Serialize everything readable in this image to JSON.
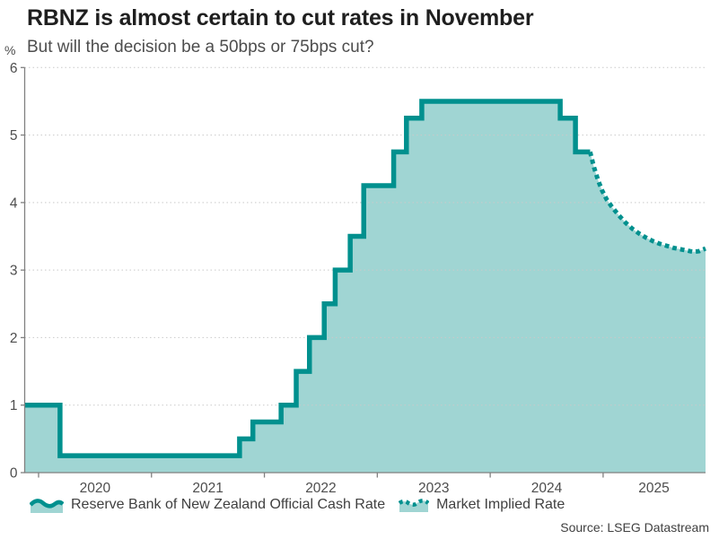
{
  "header": {
    "title": "RBNZ is almost certain to cut rates in November",
    "subtitle": "But will the decision be a 50bps or 75bps cut?",
    "unit": "%"
  },
  "legend": {
    "ocr_label": "Reserve Bank of New Zealand Official Cash Rate",
    "implied_label": "Market Implied Rate"
  },
  "source": "Source: LSEG Datastream",
  "chart_data": {
    "type": "area",
    "title": "RBNZ is almost certain to cut rates in November",
    "subtitle": "But will the decision be a 50bps or 75bps cut?",
    "xlabel": "",
    "ylabel": "%",
    "ylim": [
      0,
      6
    ],
    "xlim": [
      2019.877,
      2025.907
    ],
    "yticks": [
      0,
      1,
      2,
      3,
      4,
      5,
      6
    ],
    "xticks": [
      2020,
      2021,
      2022,
      2023,
      2024,
      2025
    ],
    "xtick_labels": [
      "2020",
      "2021",
      "2022",
      "2023",
      "2024",
      "2025"
    ],
    "xtick_label_positions": [
      2020.5,
      2021.5,
      2022.5,
      2023.5,
      2024.5,
      2025.45
    ],
    "grid": "horizontal-dotted",
    "legend_position": "bottom",
    "series": [
      {
        "name": "Reserve Bank of New Zealand Official Cash Rate",
        "style": "solid-step",
        "end_x": 2024.885,
        "points": [
          [
            2019.877,
            1.0
          ],
          [
            2020.19,
            0.25
          ],
          [
            2021.78,
            0.5
          ],
          [
            2021.898,
            0.75
          ],
          [
            2022.148,
            1.0
          ],
          [
            2022.282,
            1.5
          ],
          [
            2022.399,
            2.0
          ],
          [
            2022.53,
            2.5
          ],
          [
            2022.627,
            3.0
          ],
          [
            2022.76,
            3.5
          ],
          [
            2022.88,
            4.25
          ],
          [
            2023.145,
            4.75
          ],
          [
            2023.258,
            5.25
          ],
          [
            2023.394,
            5.5
          ],
          [
            2024.62,
            5.25
          ],
          [
            2024.755,
            4.75
          ]
        ]
      },
      {
        "name": "Market Implied Rate",
        "style": "dotted",
        "points": [
          [
            2024.885,
            4.75
          ],
          [
            2024.92,
            4.52
          ],
          [
            2024.955,
            4.33
          ],
          [
            2024.99,
            4.18
          ],
          [
            2025.03,
            4.05
          ],
          [
            2025.08,
            3.93
          ],
          [
            2025.14,
            3.81
          ],
          [
            2025.2,
            3.7
          ],
          [
            2025.26,
            3.61
          ],
          [
            2025.32,
            3.54
          ],
          [
            2025.38,
            3.48
          ],
          [
            2025.44,
            3.43
          ],
          [
            2025.5,
            3.39
          ],
          [
            2025.56,
            3.36
          ],
          [
            2025.62,
            3.33
          ],
          [
            2025.68,
            3.31
          ],
          [
            2025.74,
            3.29
          ],
          [
            2025.8,
            3.27
          ],
          [
            2025.85,
            3.28
          ],
          [
            2025.907,
            3.32
          ]
        ]
      }
    ],
    "colors": {
      "line": "#00908E",
      "fill": "#A0D5D3",
      "grid": "#C9C9C9",
      "axis": "#808080",
      "tick_text": "#4D4D4D"
    }
  }
}
